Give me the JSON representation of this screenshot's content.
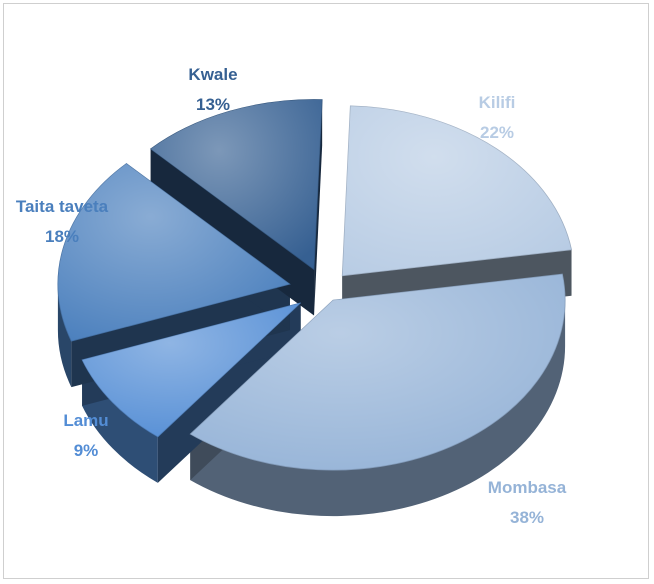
{
  "chart_data": {
    "type": "pie",
    "style": "3d-exploded",
    "title": "",
    "legend": "none",
    "slices": [
      {
        "label": "Kilifi",
        "value": 22,
        "pct_label": "22%",
        "color": "#b8cce4"
      },
      {
        "label": "Mombasa",
        "value": 38,
        "pct_label": "38%",
        "color": "#95b3d7"
      },
      {
        "label": "Lamu",
        "value": 9,
        "pct_label": "9%",
        "color": "#538dd5"
      },
      {
        "label": "Taita taveta",
        "value": 18,
        "pct_label": "18%",
        "color": "#4a7fbd"
      },
      {
        "label": "Kwale",
        "value": 13,
        "pct_label": "13%",
        "color": "#366092"
      }
    ]
  }
}
